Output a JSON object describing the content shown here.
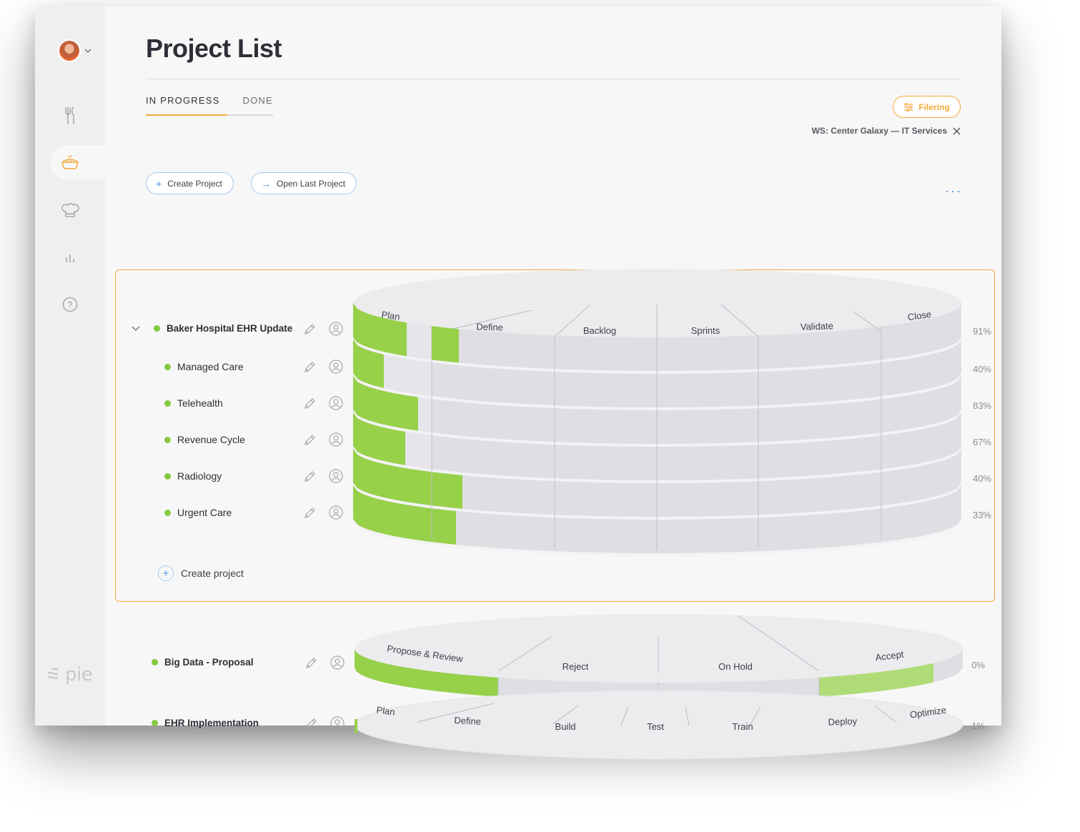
{
  "page": {
    "title": "Project List",
    "tabs": [
      {
        "label": "IN PROGRESS",
        "active": true
      },
      {
        "label": "DONE",
        "active": false
      }
    ],
    "filter_button": "Filering",
    "workspace_tag": "WS: Center Galaxy — IT Services",
    "create_project_button": "Create Project",
    "open_last_project_button": "Open Last Project",
    "more_menu": "···"
  },
  "sidebar": {
    "items": [
      {
        "icon": "fork-knife-icon",
        "active": false
      },
      {
        "icon": "pie-icon",
        "active": true
      },
      {
        "icon": "chef-hat-icon",
        "active": false
      },
      {
        "icon": "bar-chart-icon",
        "active": false
      },
      {
        "icon": "help-icon",
        "active": false
      }
    ],
    "logo": "pie"
  },
  "colors": {
    "accent": "#f2a93b",
    "link": "#4b8fe2",
    "progress": "#97d14a",
    "progress_light": "#b0dc78",
    "status_dot": "#85c93f"
  },
  "group": {
    "parent": {
      "name": "Baker Hospital EHR Update",
      "progress": "91%"
    },
    "children": [
      {
        "name": "Managed Care",
        "progress": "40%"
      },
      {
        "name": "Telehealth",
        "progress": "83%"
      },
      {
        "name": "Revenue Cycle",
        "progress": "67%"
      },
      {
        "name": "Radiology",
        "progress": "40%"
      },
      {
        "name": "Urgent Care",
        "progress": "33%"
      }
    ],
    "stages": [
      "Plan",
      "Define",
      "Backlog",
      "Sprints",
      "Validate",
      "Close"
    ],
    "create_link": "Create project"
  },
  "other_projects": [
    {
      "name": "Big Data - Proposal",
      "progress": "0%",
      "stages": [
        "Propose & Review",
        "Reject",
        "On Hold",
        "Accept"
      ]
    },
    {
      "name": "EHR Implementation",
      "progress": "1%",
      "stages": [
        "Plan",
        "Define",
        "Build",
        "Test",
        "Train",
        "Deploy",
        "Optimize"
      ]
    }
  ]
}
